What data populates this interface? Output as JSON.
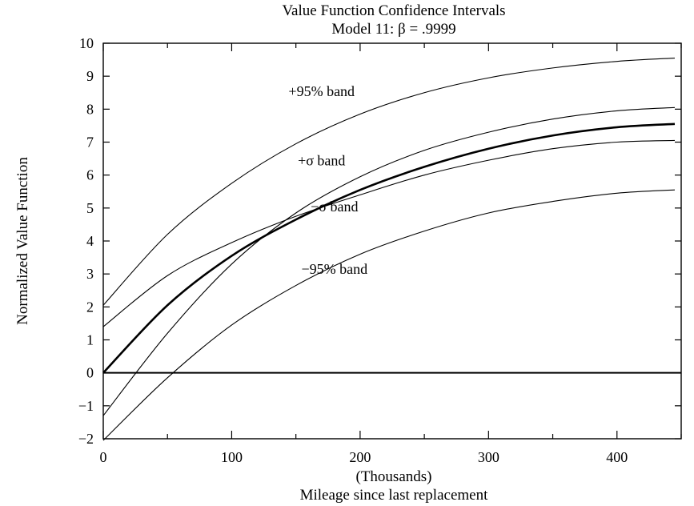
{
  "chart_data": {
    "type": "line",
    "title": "Value Function Confidence Intervals",
    "subtitle": "Model 11: β = .9999",
    "xlabel": "Mileage since last replacement",
    "xunit": "(Thousands)",
    "ylabel": "Normalized Value Function",
    "xlim": [
      0,
      450
    ],
    "ylim": [
      -2,
      10
    ],
    "xticks": [
      0,
      100,
      200,
      300,
      400
    ],
    "yticks": [
      -2,
      -1,
      0,
      1,
      2,
      3,
      4,
      5,
      6,
      7,
      8,
      9,
      10
    ],
    "zero_line": true,
    "x": [
      0,
      50,
      100,
      150,
      200,
      250,
      300,
      350,
      400,
      445
    ],
    "series": [
      {
        "key": "plus95",
        "values": [
          2.05,
          4.2,
          5.75,
          6.95,
          7.85,
          8.5,
          8.95,
          9.25,
          9.45,
          9.55
        ]
      },
      {
        "key": "plussigma",
        "values": [
          -1.3,
          1.2,
          3.3,
          4.85,
          5.95,
          6.75,
          7.3,
          7.7,
          7.95,
          8.05
        ]
      },
      {
        "key": "estimate",
        "bold": true,
        "values": [
          0,
          2.05,
          3.55,
          4.65,
          5.55,
          6.25,
          6.8,
          7.2,
          7.45,
          7.55
        ]
      },
      {
        "key": "minussigma",
        "values": [
          1.4,
          2.95,
          3.95,
          4.75,
          5.4,
          6.0,
          6.45,
          6.8,
          7.0,
          7.05
        ]
      },
      {
        "key": "minus95",
        "values": [
          -2.05,
          -0.15,
          1.45,
          2.65,
          3.6,
          4.3,
          4.85,
          5.2,
          5.45,
          5.55
        ]
      }
    ],
    "annotations": [
      {
        "label": "+95% band",
        "x": 170,
        "y": 8.4
      },
      {
        "label": "+σ band",
        "x": 170,
        "y": 6.3
      },
      {
        "label": "−σ band",
        "x": 180,
        "y": 4.9
      },
      {
        "label": "−95% band",
        "x": 180,
        "y": 3.0
      }
    ]
  }
}
